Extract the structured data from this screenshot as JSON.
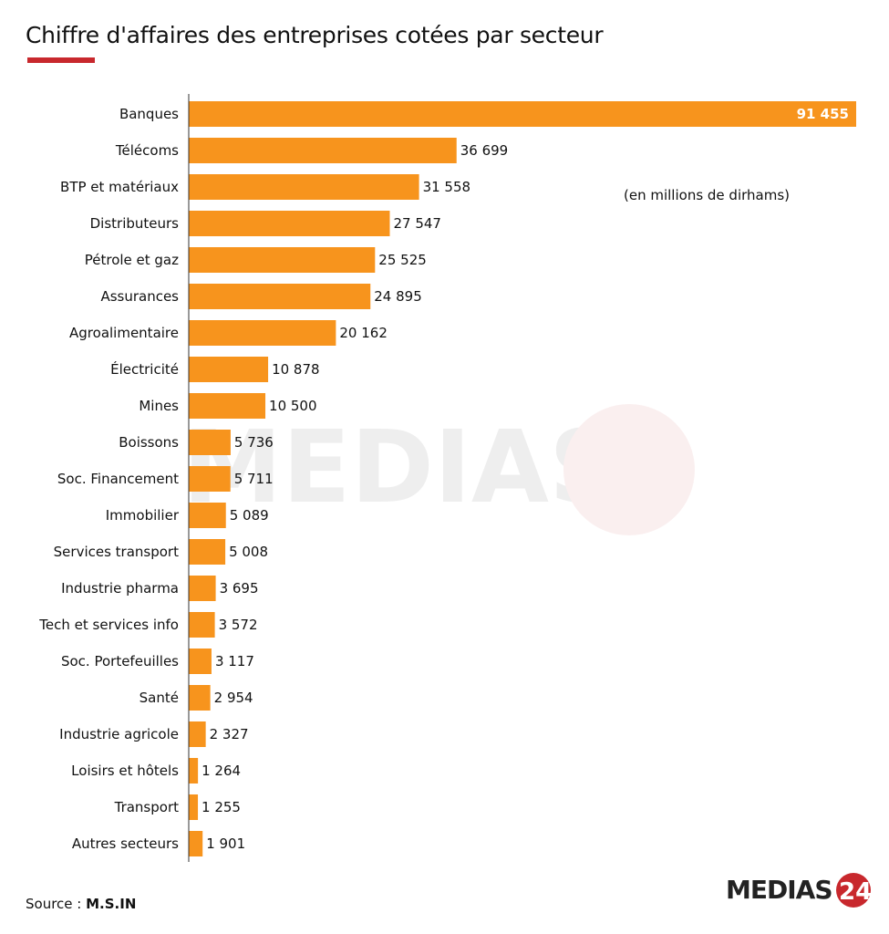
{
  "title": "Chiffre d'affaires des entreprises cotées par secteur",
  "unit_note": "(en millions de dirhams)",
  "source_label": "Source : ",
  "source_value": "M.S.IN",
  "logo_text": "MEDIAS24",
  "colors": {
    "bar": "#f7941d",
    "accent": "#c8282d",
    "text": "#111111"
  },
  "chart_data": {
    "type": "bar",
    "orientation": "horizontal",
    "title": "Chiffre d'affaires des entreprises cotées par secteur",
    "xlabel": "",
    "ylabel": "",
    "grid": false,
    "categories": [
      "Banques",
      "Télécoms",
      "BTP et matériaux",
      "Distributeurs",
      "Pétrole et gaz",
      "Assurances",
      "Agroalimentaire",
      "Électricité",
      "Mines",
      "Boissons",
      "Soc. Financement",
      "Immobilier",
      "Services transport",
      "Industrie pharma",
      "Tech et services info",
      "Soc. Portefeuilles",
      "Santé",
      "Industrie agricole",
      "Loisirs et hôtels",
      "Transport",
      "Autres secteurs"
    ],
    "values": [
      91455,
      36699,
      31558,
      27547,
      25525,
      24895,
      20162,
      10878,
      10500,
      5736,
      5711,
      5089,
      5008,
      3695,
      3572,
      3117,
      2954,
      2327,
      1264,
      1255,
      1901
    ],
    "value_labels": [
      "91 455",
      "36 699",
      "31 558",
      "27 547",
      "25 525",
      "24 895",
      "20 162",
      "10 878",
      "10 500",
      "5 736",
      "5 711",
      "5 089",
      "5 008",
      "3 695",
      "3 572",
      "3 117",
      "2 954",
      "2 327",
      "1 264",
      "1 255",
      "1 901"
    ],
    "xlim": [
      0,
      91455
    ]
  }
}
